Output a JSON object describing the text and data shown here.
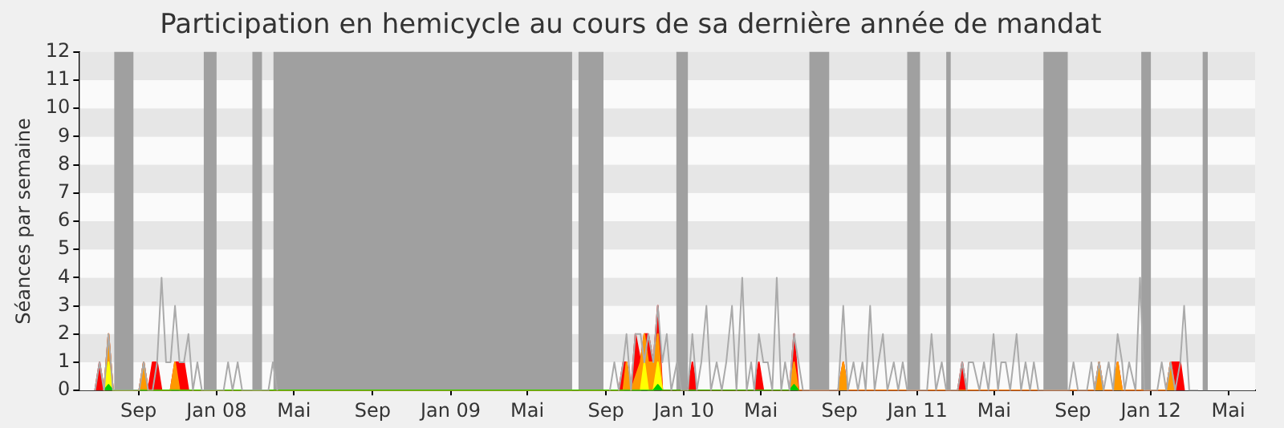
{
  "chart_data": {
    "type": "line",
    "title": "Participation en hemicycle au cours de sa dernière année de mandat",
    "ylabel": "Séances par semaine",
    "xlim": [
      "2007-06-01",
      "2012-06-12"
    ],
    "xticks": [
      {
        "value": "2007-09-01",
        "label": "Sep"
      },
      {
        "value": "2008-01-01",
        "label": "Jan 08"
      },
      {
        "value": "2008-05-01",
        "label": "Mai"
      },
      {
        "value": "2008-09-01",
        "label": "Sep"
      },
      {
        "value": "2009-01-01",
        "label": "Jan 09"
      },
      {
        "value": "2009-05-01",
        "label": "Mai"
      },
      {
        "value": "2009-09-01",
        "label": "Sep"
      },
      {
        "value": "2010-01-01",
        "label": "Jan 10"
      },
      {
        "value": "2010-05-01",
        "label": "Mai"
      },
      {
        "value": "2010-09-01",
        "label": "Sep"
      },
      {
        "value": "2011-01-01",
        "label": "Jan 11"
      },
      {
        "value": "2011-05-01",
        "label": "Mai"
      },
      {
        "value": "2011-09-01",
        "label": "Sep"
      },
      {
        "value": "2012-01-01",
        "label": "Jan 12"
      },
      {
        "value": "2012-05-01",
        "label": "Mai"
      }
    ],
    "ylim": [
      0,
      12
    ],
    "yticks": [
      0,
      1,
      2,
      3,
      4,
      5,
      6,
      7,
      8,
      9,
      10,
      11,
      12
    ],
    "legend": false,
    "bands": [
      {
        "axis": "y",
        "from": 0,
        "to": 1,
        "color": "#fafafa"
      },
      {
        "axis": "y",
        "from": 1,
        "to": 2,
        "color": "#e6e6e6"
      },
      {
        "axis": "y",
        "from": 2,
        "to": 3,
        "color": "#fafafa"
      },
      {
        "axis": "y",
        "from": 3,
        "to": 4,
        "color": "#e6e6e6"
      },
      {
        "axis": "y",
        "from": 4,
        "to": 5,
        "color": "#fafafa"
      },
      {
        "axis": "y",
        "from": 5,
        "to": 6,
        "color": "#e6e6e6"
      },
      {
        "axis": "y",
        "from": 6,
        "to": 7,
        "color": "#fafafa"
      },
      {
        "axis": "y",
        "from": 7,
        "to": 8,
        "color": "#e6e6e6"
      },
      {
        "axis": "y",
        "from": 8,
        "to": 9,
        "color": "#fafafa"
      },
      {
        "axis": "y",
        "from": 9,
        "to": 10,
        "color": "#e6e6e6"
      },
      {
        "axis": "y",
        "from": 10,
        "to": 11,
        "color": "#fafafa"
      },
      {
        "axis": "y",
        "from": 11,
        "to": 12,
        "color": "#e6e6e6"
      },
      {
        "axis": "x",
        "from": "2007-07-25",
        "to": "2007-08-24",
        "color": "#a0a0a0"
      },
      {
        "axis": "x",
        "from": "2007-12-12",
        "to": "2008-01-01",
        "color": "#a0a0a0"
      },
      {
        "axis": "x",
        "from": "2008-02-26",
        "to": "2008-03-12",
        "color": "#a0a0a0"
      },
      {
        "axis": "x",
        "from": "2008-03-30",
        "to": "2009-07-10",
        "color": "#a0a0a0"
      },
      {
        "axis": "x",
        "from": "2009-07-20",
        "to": "2009-08-28",
        "color": "#a0a0a0"
      },
      {
        "axis": "x",
        "from": "2009-12-20",
        "to": "2010-01-07",
        "color": "#a0a0a0"
      },
      {
        "axis": "x",
        "from": "2010-07-16",
        "to": "2010-08-16",
        "color": "#a0a0a0"
      },
      {
        "axis": "x",
        "from": "2010-12-16",
        "to": "2011-01-05",
        "color": "#a0a0a0"
      },
      {
        "axis": "x",
        "from": "2011-02-15",
        "to": "2011-02-22",
        "color": "#a0a0a0"
      },
      {
        "axis": "x",
        "from": "2011-07-17",
        "to": "2011-08-24",
        "color": "#a0a0a0"
      },
      {
        "axis": "x",
        "from": "2011-12-17",
        "to": "2012-01-01",
        "color": "#a0a0a0"
      },
      {
        "axis": "x",
        "from": "2012-03-22",
        "to": "2012-03-30",
        "color": "#a0a0a0"
      }
    ],
    "series": [
      {
        "type": "line",
        "color": "#aaaaaa",
        "x": [
          "2007-06-25",
          "2007-07-02",
          "2007-07-09",
          "2007-07-16",
          "2007-07-23",
          "2007-09-02",
          "2007-09-09",
          "2007-09-16",
          "2007-09-23",
          "2007-09-30",
          "2007-10-07",
          "2007-10-14",
          "2007-10-21",
          "2007-10-28",
          "2007-11-04",
          "2007-11-11",
          "2007-11-18",
          "2007-11-25",
          "2007-12-02",
          "2007-12-09",
          "2008-01-12",
          "2008-01-19",
          "2008-01-26",
          "2008-02-03",
          "2008-02-10",
          "2008-03-22",
          "2008-03-29",
          "2008-04-05",
          "2009-07-01",
          "2009-09-07",
          "2009-09-14",
          "2009-09-21",
          "2009-09-28",
          "2009-10-03",
          "2009-10-10",
          "2009-10-17",
          "2009-10-25",
          "2009-10-31",
          "2009-11-06",
          "2009-11-14",
          "2009-11-21",
          "2009-11-28",
          "2009-12-05",
          "2009-12-12",
          "2009-12-21",
          "2009-12-28",
          "2010-01-07",
          "2010-01-14",
          "2010-01-21",
          "2010-01-28",
          "2010-02-05",
          "2010-02-12",
          "2010-02-21",
          "2010-03-01",
          "2010-03-08",
          "2010-03-17",
          "2010-03-24",
          "2010-04-02",
          "2010-04-09",
          "2010-04-16",
          "2010-04-21",
          "2010-04-28",
          "2010-05-05",
          "2010-05-12",
          "2010-05-19",
          "2010-05-26",
          "2010-06-02",
          "2010-06-08",
          "2010-06-15",
          "2010-06-22",
          "2010-06-29",
          "2010-07-06",
          "2010-07-13",
          "2010-08-30",
          "2010-09-07",
          "2010-09-14",
          "2010-09-23",
          "2010-09-30",
          "2010-10-07",
          "2010-10-12",
          "2010-10-19",
          "2010-10-26",
          "2010-11-01",
          "2010-11-08",
          "2010-11-15",
          "2010-11-25",
          "2010-12-02",
          "2010-12-09",
          "2010-12-16",
          "2011-01-16",
          "2011-01-23",
          "2011-01-30",
          "2011-02-08",
          "2011-02-15",
          "2011-03-05",
          "2011-03-12",
          "2011-03-19",
          "2011-03-22",
          "2011-03-29",
          "2011-04-08",
          "2011-04-15",
          "2011-04-22",
          "2011-04-30",
          "2011-05-07",
          "2011-05-12",
          "2011-05-19",
          "2011-05-26",
          "2011-06-05",
          "2011-06-12",
          "2011-06-19",
          "2011-06-26",
          "2011-07-02",
          "2011-07-09",
          "2011-08-26",
          "2011-09-02",
          "2011-09-09",
          "2011-09-23",
          "2011-09-30",
          "2011-10-05",
          "2011-10-12",
          "2011-10-19",
          "2011-10-27",
          "2011-11-03",
          "2011-11-10",
          "2011-11-17",
          "2011-11-21",
          "2011-11-28",
          "2011-12-08",
          "2011-12-15",
          "2011-12-22",
          "2012-01-11",
          "2012-01-18",
          "2012-01-25",
          "2012-02-01",
          "2012-02-08",
          "2012-02-16",
          "2012-02-22",
          "2012-03-01",
          "2012-03-15"
        ],
        "values": [
          0,
          1,
          0,
          2,
          0,
          0,
          1,
          0,
          0,
          1,
          4,
          1,
          1,
          3,
          1,
          1,
          2,
          0,
          1,
          0,
          0,
          1,
          0,
          1,
          0,
          0,
          1,
          0,
          null,
          0,
          1,
          0,
          1,
          2,
          0,
          2,
          2,
          1,
          2,
          1,
          3,
          1,
          2,
          0,
          1,
          0,
          0,
          2,
          0,
          1,
          3,
          0,
          1,
          0,
          1,
          3,
          0,
          4,
          0,
          1,
          0,
          2,
          1,
          1,
          0,
          4,
          0,
          1,
          0,
          2,
          1,
          0,
          0,
          0,
          3,
          0,
          1,
          0,
          1,
          0,
          3,
          0,
          1,
          2,
          0,
          1,
          0,
          1,
          0,
          0,
          2,
          0,
          1,
          0,
          0,
          1,
          0,
          1,
          1,
          0,
          1,
          0,
          2,
          0,
          1,
          1,
          0,
          2,
          0,
          1,
          0,
          1,
          0,
          0,
          1,
          0,
          0,
          1,
          0,
          1,
          0,
          1,
          0,
          2,
          1,
          0,
          1,
          0,
          4,
          0,
          0,
          1,
          0,
          1,
          0,
          1,
          3,
          0,
          0
        ]
      },
      {
        "type": "area",
        "color": "#ff0000",
        "x": [
          "2007-06-25",
          "2007-07-02",
          "2007-07-09",
          "2007-07-16",
          "2007-07-23",
          "2007-09-02",
          "2007-09-09",
          "2007-09-16",
          "2007-09-23",
          "2007-09-30",
          "2007-10-07",
          "2007-10-21",
          "2007-10-28",
          "2007-11-04",
          "2007-11-11",
          "2007-11-18",
          "2009-09-21",
          "2009-09-28",
          "2009-10-03",
          "2009-10-10",
          "2009-10-17",
          "2009-10-25",
          "2009-10-31",
          "2009-11-06",
          "2009-11-14",
          "2009-11-21",
          "2009-11-28",
          "2010-01-07",
          "2010-01-14",
          "2010-01-21",
          "2010-04-21",
          "2010-04-28",
          "2010-05-05",
          "2010-06-15",
          "2010-06-22",
          "2010-06-29",
          "2010-08-30",
          "2010-09-07",
          "2010-09-14",
          "2011-03-05",
          "2011-03-12",
          "2011-03-19",
          "2011-10-05",
          "2011-10-12",
          "2011-10-19",
          "2011-11-03",
          "2011-11-10",
          "2011-11-17",
          "2012-01-25",
          "2012-02-01",
          "2012-02-08",
          "2012-02-16",
          "2012-02-22"
        ],
        "values": [
          0,
          1,
          0,
          2,
          0,
          0,
          1,
          0,
          1,
          1,
          0,
          0,
          1,
          1,
          1,
          0,
          0,
          1,
          1,
          0,
          2,
          1,
          2,
          2,
          1,
          3,
          0,
          0,
          1,
          0,
          0,
          1,
          0,
          0,
          2,
          0,
          0,
          1,
          0,
          0,
          1,
          0,
          0,
          1,
          0,
          0,
          1,
          0,
          0,
          1,
          1,
          1,
          0
        ]
      },
      {
        "type": "area",
        "color": "#ff9900",
        "x": [
          "2007-07-09",
          "2007-07-16",
          "2007-07-23",
          "2007-09-02",
          "2007-09-09",
          "2007-09-16",
          "2007-10-21",
          "2007-10-28",
          "2007-11-04",
          "2009-09-28",
          "2009-10-03",
          "2009-10-10",
          "2009-10-25",
          "2009-10-31",
          "2009-11-06",
          "2009-11-14",
          "2009-11-21",
          "2009-11-28",
          "2010-06-15",
          "2010-06-22",
          "2010-06-29",
          "2010-08-30",
          "2010-09-07",
          "2010-09-14",
          "2011-10-05",
          "2011-10-12",
          "2011-10-19",
          "2011-11-03",
          "2011-11-10",
          "2011-11-17",
          "2012-01-25",
          "2012-02-01",
          "2012-02-08"
        ],
        "values": [
          0,
          2,
          0,
          0,
          1,
          0,
          0,
          1,
          0,
          0,
          1,
          0,
          1,
          2,
          1,
          1,
          2,
          0,
          0,
          1,
          0,
          0,
          1,
          0,
          0,
          1,
          0,
          0,
          1,
          0,
          0,
          1,
          0
        ]
      },
      {
        "type": "area",
        "color": "#ffff00",
        "x": [
          "2007-07-09",
          "2007-07-16",
          "2007-07-23",
          "2009-10-25",
          "2009-10-31",
          "2009-11-06",
          "2009-11-14",
          "2009-11-21",
          "2009-11-28"
        ],
        "values": [
          0,
          1,
          0,
          0,
          1,
          0,
          0,
          1,
          0
        ]
      },
      {
        "type": "area",
        "color": "#00cc00",
        "x": [
          "2007-07-09",
          "2007-07-16",
          "2007-07-23",
          "2009-11-14",
          "2009-11-21",
          "2009-11-28",
          "2010-06-15",
          "2010-06-22",
          "2010-06-29"
        ],
        "values": [
          0,
          0.2,
          0,
          0,
          0.2,
          0,
          0,
          0.2,
          0
        ]
      }
    ]
  }
}
